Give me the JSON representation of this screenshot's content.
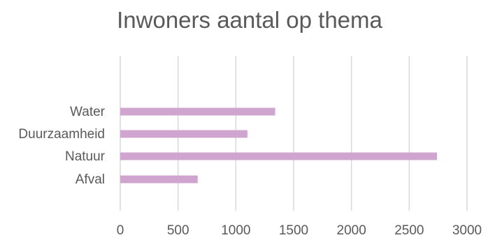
{
  "chart_data": {
    "type": "bar",
    "orientation": "horizontal",
    "title": "Inwoners aantal op thema",
    "xlabel": "",
    "ylabel": "",
    "categories": [
      "Water",
      "Duurzaamheid",
      "Natuur",
      "Afval"
    ],
    "series": [
      {
        "values": [
          1340,
          1100,
          2740,
          670
        ]
      }
    ],
    "xlim": [
      0,
      3000
    ],
    "xticks": [
      "0",
      "500",
      "1000",
      "1500",
      "2000",
      "2500",
      "3000"
    ],
    "grid": true,
    "legend": "none",
    "colors": {
      "bar": "#cfa5d0",
      "grid": "#d9d9d9",
      "text": "#595959"
    }
  }
}
